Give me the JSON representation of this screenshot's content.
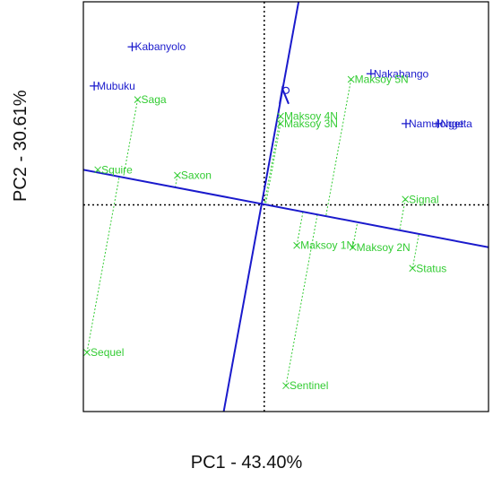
{
  "chart_data": {
    "type": "scatter",
    "title": "",
    "xlabel": "PC1 - 43.40%",
    "ylabel": "PC2 - 30.61%",
    "xlim": [
      -5,
      6.2
    ],
    "ylim": [
      -5.6,
      5.5
    ],
    "grid": false,
    "colors": {
      "environment": "#1a1acc",
      "genotype": "#33cc33",
      "reference": "#000000"
    },
    "environments": [
      {
        "label": "Kabanyolo",
        "x": -3.65,
        "y": 4.28
      },
      {
        "label": "Mubuku",
        "x": -4.7,
        "y": 3.22
      },
      {
        "label": "Nakabango",
        "x": 2.95,
        "y": 3.55
      },
      {
        "label": "Ngetta",
        "x": 4.8,
        "y": 2.2
      },
      {
        "label": "Namulonge",
        "x": 3.92,
        "y": 2.2
      }
    ],
    "genotypes": [
      {
        "label": "Saga",
        "x": -3.5,
        "y": 2.85
      },
      {
        "label": "Maksoy 5N",
        "x": 2.4,
        "y": 3.4
      },
      {
        "label": "Maksoy 4N",
        "x": 0.45,
        "y": 2.4
      },
      {
        "label": "Maksoy 3N",
        "x": 0.45,
        "y": 2.2
      },
      {
        "label": "Squire",
        "x": -4.6,
        "y": 0.95
      },
      {
        "label": "Saxon",
        "x": -2.4,
        "y": 0.8
      },
      {
        "label": "Signal",
        "x": 3.9,
        "y": 0.15
      },
      {
        "label": "Maksoy 1N",
        "x": 0.9,
        "y": -1.1
      },
      {
        "label": "Maksoy 2N",
        "x": 2.45,
        "y": -1.15
      },
      {
        "label": "Status",
        "x": 4.1,
        "y": -1.72
      },
      {
        "label": "Sequel",
        "x": -4.9,
        "y": -4.0
      },
      {
        "label": "Sentinel",
        "x": 0.6,
        "y": -4.9
      }
    ],
    "average_environment": {
      "x": 0.6,
      "y": 3.1
    },
    "average_environment_axis": {
      "from": {
        "x": -5,
        "y": 0.95
      },
      "to": {
        "x": 6.2,
        "y": -1.15
      }
    },
    "average_environment_coordinate": {
      "from": {
        "x": -1.12,
        "y": -5.6
      },
      "to": {
        "x": 0.95,
        "y": 5.5
      }
    }
  }
}
